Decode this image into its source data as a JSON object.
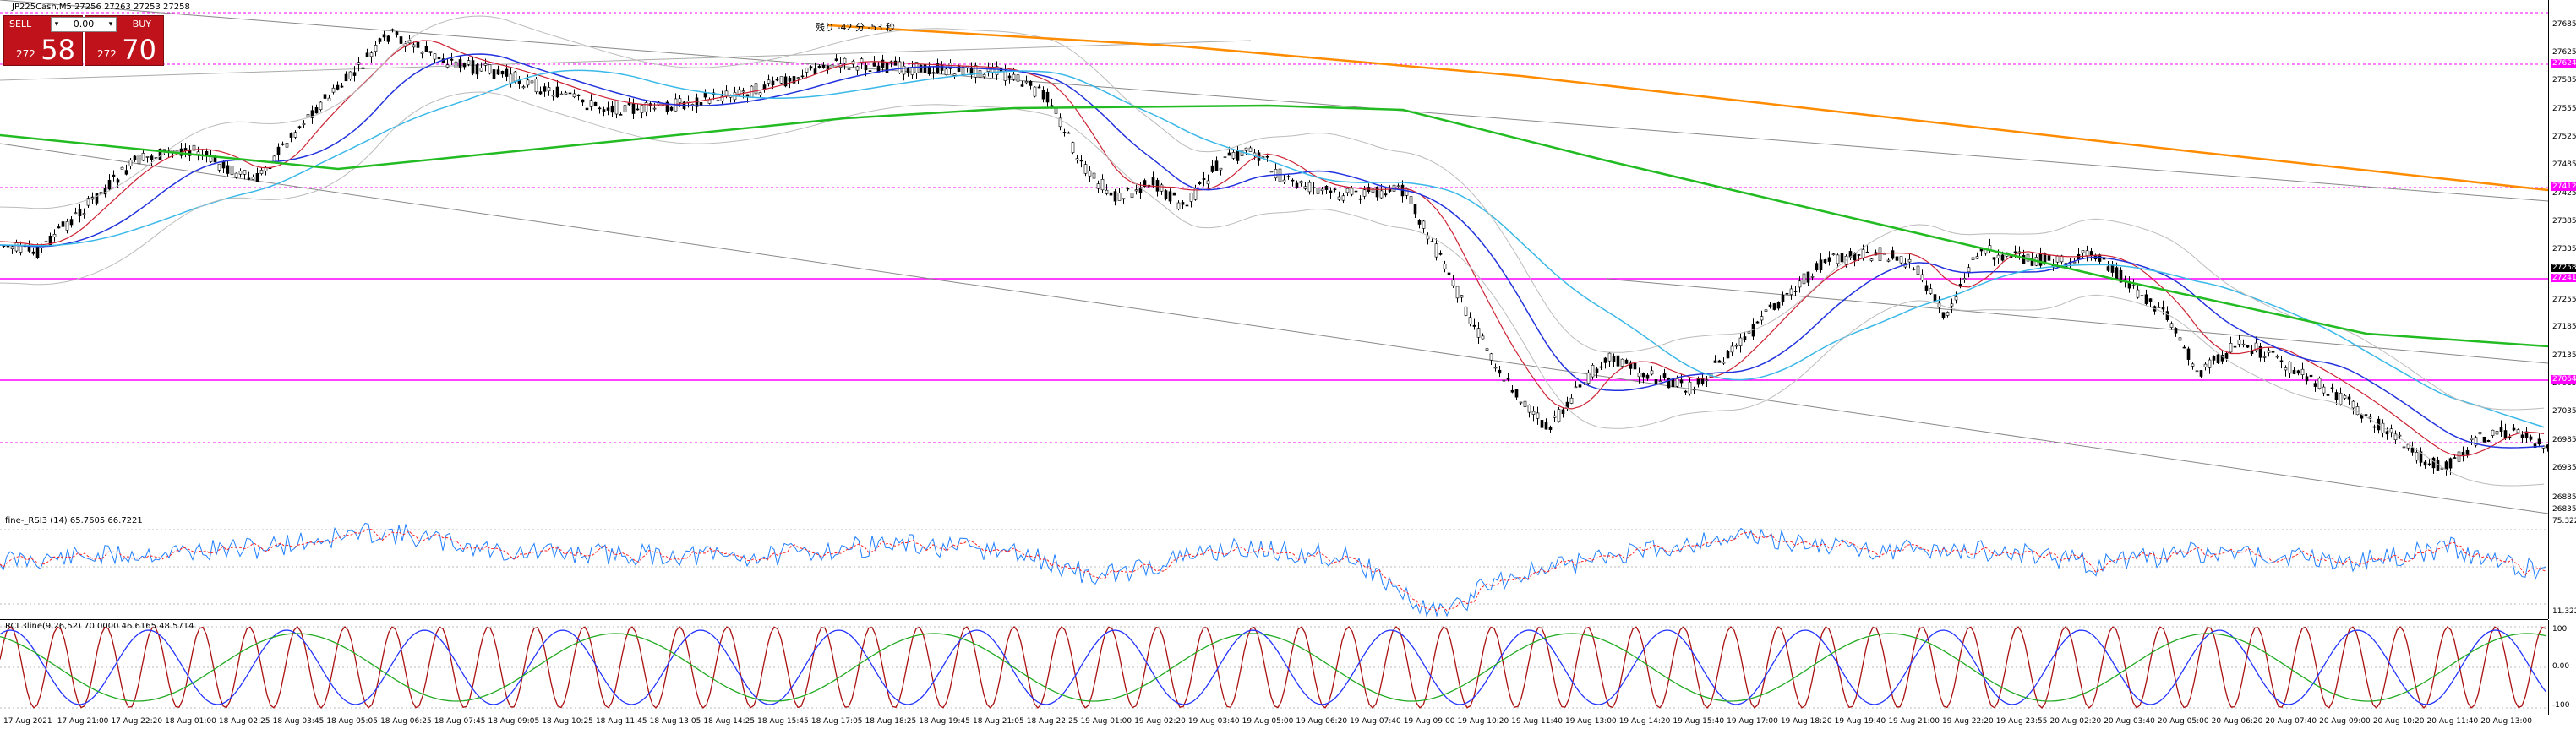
{
  "window": {
    "symbol_line": "JP225Cash,M5  27256 27263 27253 27258"
  },
  "trade_panel": {
    "sell_label": "SELL",
    "buy_label": "BUY",
    "lot_value": "0.00",
    "sell_price_small": "272",
    "sell_price_big": "58",
    "buy_price_small": "272",
    "buy_price_big": "70"
  },
  "countdown": "残り -42 分 -53 秒",
  "main_axis": {
    "labels": [
      "27685",
      "27625",
      "27585",
      "27555",
      "27525",
      "27485",
      "27425",
      "27385",
      "27335",
      "27285",
      "27255",
      "27185",
      "27135",
      "27085",
      "27035",
      "26985",
      "26935",
      "26885",
      "26835"
    ],
    "highlight_labels": [
      {
        "text": "27624",
        "style": "hl"
      },
      {
        "text": "27412",
        "style": "hl"
      },
      {
        "text": "27258",
        "style": "dark"
      },
      {
        "text": "27241",
        "style": "hl"
      },
      {
        "text": "27064",
        "style": "hl"
      }
    ]
  },
  "rsi_pane": {
    "title": "fine-_RSI3 (14) 65.7605 66.7221",
    "axis_top": "75.3227",
    "axis_bottom": "11.3227"
  },
  "rci_pane": {
    "title": "RCI 3line(9,26,52) 70.0000 46.6165 48.5714",
    "axis_labels": [
      "100",
      "0.00",
      "-100"
    ]
  },
  "x_axis": {
    "labels": [
      "17 Aug 2021",
      "17 Aug 21:00",
      "17 Aug 22:20",
      "18 Aug 01:00",
      "18 Aug 02:25",
      "18 Aug 03:45",
      "18 Aug 05:05",
      "18 Aug 06:25",
      "18 Aug 07:45",
      "18 Aug 09:05",
      "18 Aug 10:25",
      "18 Aug 11:45",
      "18 Aug 13:05",
      "18 Aug 14:25",
      "18 Aug 15:45",
      "18 Aug 17:05",
      "18 Aug 18:25",
      "18 Aug 19:45",
      "18 Aug 21:05",
      "18 Aug 22:25",
      "19 Aug 01:00",
      "19 Aug 02:20",
      "19 Aug 03:40",
      "19 Aug 05:00",
      "19 Aug 06:20",
      "19 Aug 07:40",
      "19 Aug 09:00",
      "19 Aug 10:20",
      "19 Aug 11:40",
      "19 Aug 13:00",
      "19 Aug 14:20",
      "19 Aug 15:40",
      "19 Aug 17:00",
      "19 Aug 18:20",
      "19 Aug 19:40",
      "19 Aug 21:00",
      "19 Aug 22:20",
      "19 Aug 23:55",
      "20 Aug 02:20",
      "20 Aug 03:40",
      "20 Aug 05:00",
      "20 Aug 06:20",
      "20 Aug 07:40",
      "20 Aug 09:00",
      "20 Aug 10:20",
      "20 Aug 11:40",
      "20 Aug 13:00"
    ]
  },
  "colors": {
    "candle": "#000000",
    "ma_orange": "#ff8c00",
    "ma_green": "#22bb22",
    "ma_blue": "#2233dd",
    "ma_cyan": "#3ab8e8",
    "bollinger": "#bbbbbb",
    "level_magenta": "#ff00ff",
    "rsi_blue": "#1e7fff",
    "rsi_red": "#ff2020",
    "rci_red": "#aa1111",
    "rci_blue": "#2233ff",
    "rci_green": "#22aa22"
  }
}
